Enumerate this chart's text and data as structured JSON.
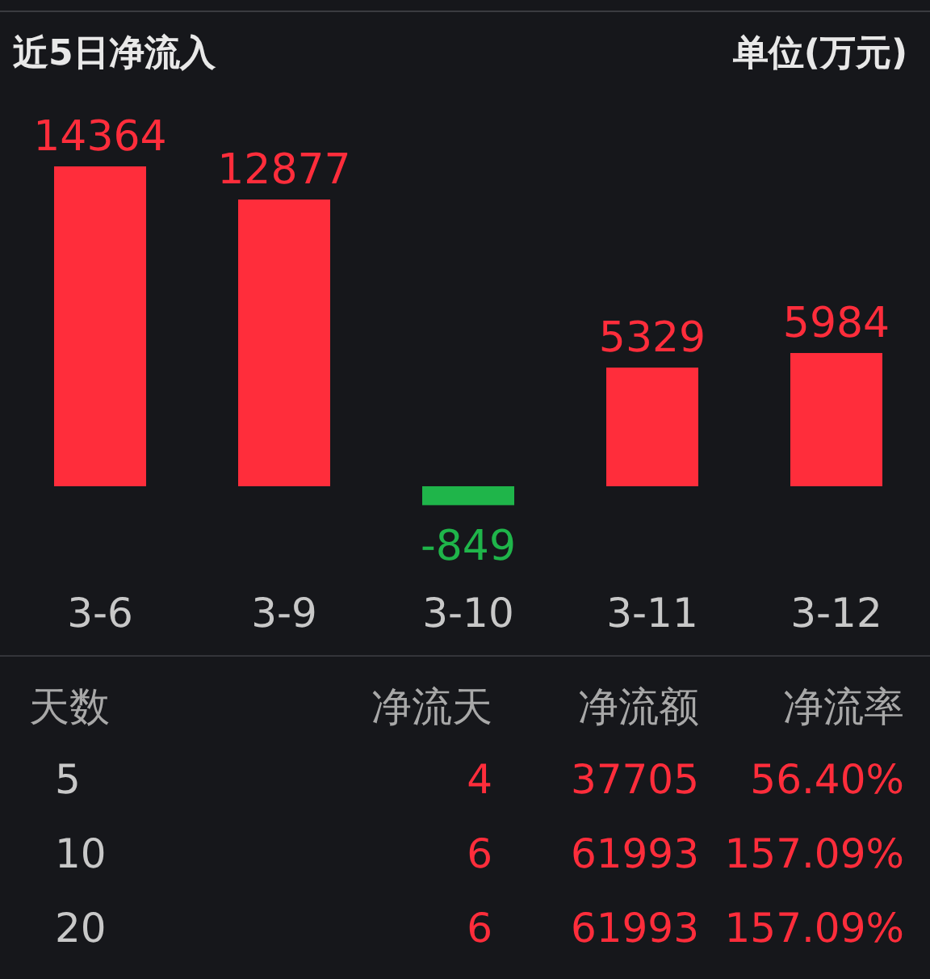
{
  "chart_data": [
    {
      "type": "bar",
      "title": "近5日净流入",
      "subtitle": "单位(万元)",
      "categories": [
        "3-6",
        "3-9",
        "3-10",
        "3-11",
        "3-12"
      ],
      "values": [
        14364,
        12877,
        -849,
        5329,
        5984
      ],
      "colors": [
        "#ff2d3b",
        "#ff2d3b",
        "#1fb54a",
        "#ff2d3b",
        "#ff2d3b"
      ],
      "data_labels": true
    },
    {
      "type": "other",
      "categories": [
        "天数",
        "净流天",
        "净流额",
        "净流率"
      ],
      "annotations": [
        "5",
        "4",
        "37705",
        "56.40%",
        "10",
        "6",
        "61993",
        "157.09%",
        "20",
        "6",
        "61993",
        "157.09%"
      ]
    }
  ]
}
